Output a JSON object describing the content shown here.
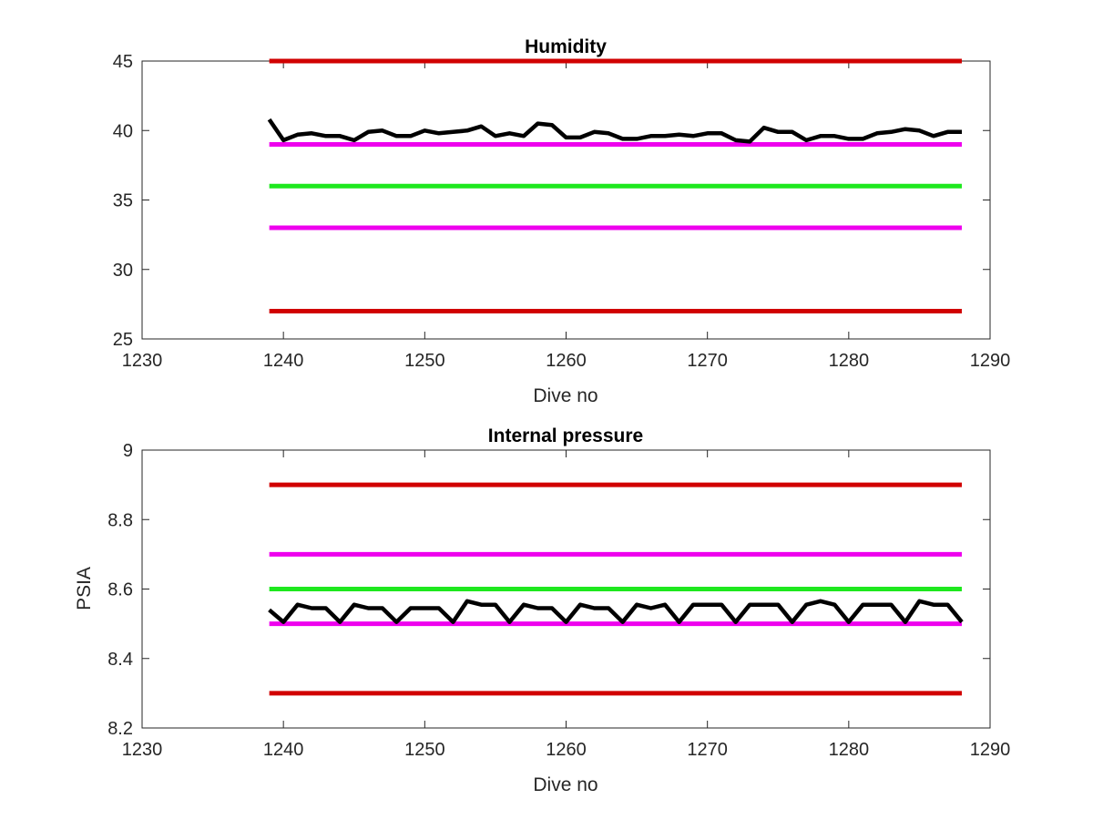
{
  "chart_data": [
    {
      "type": "line",
      "title": "Humidity",
      "xlabel": "Dive no",
      "ylabel": "",
      "xlim": [
        1230,
        1290
      ],
      "ylim": [
        25,
        45
      ],
      "xticks": [
        "1230",
        "1240",
        "1250",
        "1260",
        "1270",
        "1280",
        "1290"
      ],
      "yticks": [
        "25",
        "30",
        "35",
        "40",
        "45"
      ],
      "grid": false,
      "reference_lines": [
        {
          "y": 45,
          "color": "#d10000",
          "x": [
            1239,
            1288
          ]
        },
        {
          "y": 39,
          "color": "#ee00ee",
          "x": [
            1239,
            1288
          ]
        },
        {
          "y": 36,
          "color": "#1ee81e",
          "x": [
            1239,
            1288
          ]
        },
        {
          "y": 33,
          "color": "#ee00ee",
          "x": [
            1239,
            1288
          ]
        },
        {
          "y": 27,
          "color": "#d10000",
          "x": [
            1239,
            1288
          ]
        }
      ],
      "series": [
        {
          "color": "#000000",
          "x": [
            1239,
            1240,
            1241,
            1242,
            1243,
            1244,
            1245,
            1246,
            1247,
            1248,
            1249,
            1250,
            1251,
            1252,
            1253,
            1254,
            1255,
            1256,
            1257,
            1258,
            1259,
            1260,
            1261,
            1262,
            1263,
            1264,
            1265,
            1266,
            1267,
            1268,
            1269,
            1270,
            1271,
            1272,
            1273,
            1274,
            1275,
            1276,
            1277,
            1278,
            1279,
            1280,
            1281,
            1282,
            1283,
            1284,
            1285,
            1286,
            1287,
            1288
          ],
          "values": [
            40.8,
            39.3,
            39.7,
            39.8,
            39.6,
            39.6,
            39.3,
            39.9,
            40.0,
            39.6,
            39.6,
            40.0,
            39.8,
            39.9,
            40.0,
            40.3,
            39.6,
            39.8,
            39.6,
            40.5,
            40.4,
            39.5,
            39.5,
            39.9,
            39.8,
            39.4,
            39.4,
            39.6,
            39.6,
            39.7,
            39.6,
            39.8,
            39.8,
            39.3,
            39.2,
            40.2,
            39.9,
            39.9,
            39.3,
            39.6,
            39.6,
            39.4,
            39.4,
            39.8,
            39.9,
            40.1,
            40.0,
            39.6,
            39.9,
            39.9
          ]
        }
      ]
    },
    {
      "type": "line",
      "title": "Internal pressure",
      "xlabel": "Dive no",
      "ylabel": "PSIA",
      "xlim": [
        1230,
        1290
      ],
      "ylim": [
        8.2,
        9.0
      ],
      "xticks": [
        "1230",
        "1240",
        "1250",
        "1260",
        "1270",
        "1280",
        "1290"
      ],
      "yticks": [
        "8.2",
        "8.4",
        "8.6",
        "8.8",
        "9"
      ],
      "grid": false,
      "reference_lines": [
        {
          "y": 8.9,
          "color": "#d10000",
          "x": [
            1239,
            1288
          ]
        },
        {
          "y": 8.7,
          "color": "#ee00ee",
          "x": [
            1239,
            1288
          ]
        },
        {
          "y": 8.6,
          "color": "#1ee81e",
          "x": [
            1239,
            1288
          ]
        },
        {
          "y": 8.5,
          "color": "#ee00ee",
          "x": [
            1239,
            1288
          ]
        },
        {
          "y": 8.3,
          "color": "#d10000",
          "x": [
            1239,
            1288
          ]
        }
      ],
      "series": [
        {
          "color": "#000000",
          "x": [
            1239,
            1240,
            1241,
            1242,
            1243,
            1244,
            1245,
            1246,
            1247,
            1248,
            1249,
            1250,
            1251,
            1252,
            1253,
            1254,
            1255,
            1256,
            1257,
            1258,
            1259,
            1260,
            1261,
            1262,
            1263,
            1264,
            1265,
            1266,
            1267,
            1268,
            1269,
            1270,
            1271,
            1272,
            1273,
            1274,
            1275,
            1276,
            1277,
            1278,
            1279,
            1280,
            1281,
            1282,
            1283,
            1284,
            1285,
            1286,
            1287,
            1288
          ],
          "values": [
            8.54,
            8.505,
            8.555,
            8.545,
            8.545,
            8.505,
            8.555,
            8.545,
            8.545,
            8.505,
            8.545,
            8.545,
            8.545,
            8.505,
            8.565,
            8.555,
            8.555,
            8.505,
            8.555,
            8.545,
            8.545,
            8.505,
            8.555,
            8.545,
            8.545,
            8.505,
            8.555,
            8.545,
            8.555,
            8.505,
            8.555,
            8.555,
            8.555,
            8.505,
            8.555,
            8.555,
            8.555,
            8.505,
            8.555,
            8.565,
            8.555,
            8.505,
            8.555,
            8.555,
            8.555,
            8.505,
            8.565,
            8.555,
            8.555,
            8.505
          ]
        }
      ]
    }
  ]
}
